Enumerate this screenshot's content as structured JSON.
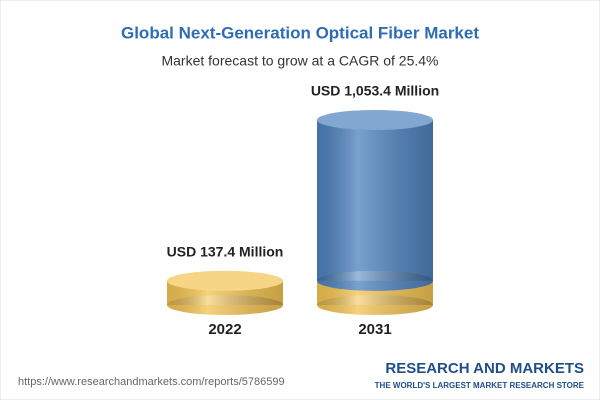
{
  "chart_data": {
    "type": "cylinder",
    "title": "Global Next-Generation Optical Fiber Market",
    "subtitle": "Market forecast to grow at a CAGR of 25.4%",
    "categories": [
      "2022",
      "2031"
    ],
    "values": [
      137.4,
      1053.4
    ],
    "value_labels": [
      "USD 137.4 Million",
      "USD 1,053.4 Million"
    ],
    "colors": [
      "#f3c352",
      "#4d82bd"
    ]
  },
  "source": "https://www.researchandmarkets.com/reports/5786599",
  "logo": {
    "name": "RESEARCH AND MARKETS",
    "tagline": "THE WORLD'S LARGEST MARKET RESEARCH STORE"
  }
}
